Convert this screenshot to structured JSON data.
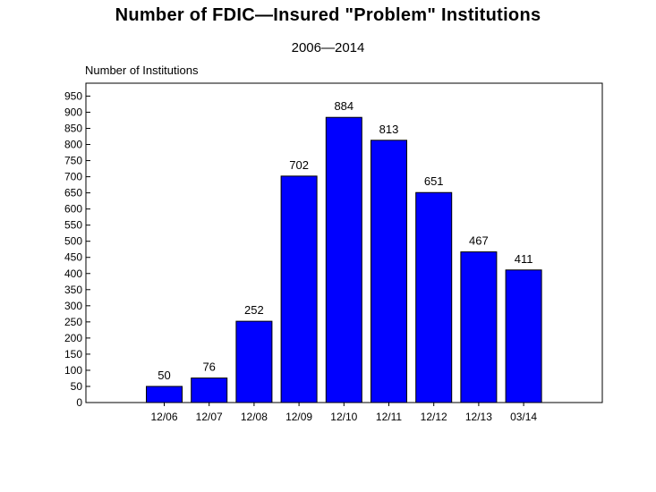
{
  "chart_data": {
    "type": "bar",
    "title": "Number of FDIC—Insured \"Problem\" Institutions",
    "subtitle": "2006—2014",
    "ylabel": "Number of Institutions",
    "xlabel": "",
    "categories": [
      "12/06",
      "12/07",
      "12/08",
      "12/09",
      "12/10",
      "12/11",
      "12/12",
      "12/13",
      "03/14"
    ],
    "values": [
      50,
      76,
      252,
      702,
      884,
      813,
      651,
      467,
      411
    ],
    "ylim": [
      0,
      990
    ],
    "yticks": [
      0,
      50,
      100,
      150,
      200,
      250,
      300,
      350,
      400,
      450,
      500,
      550,
      600,
      650,
      700,
      750,
      800,
      850,
      900,
      950
    ],
    "bar_color": "#0000ff",
    "grid": false,
    "data_labels": true
  }
}
